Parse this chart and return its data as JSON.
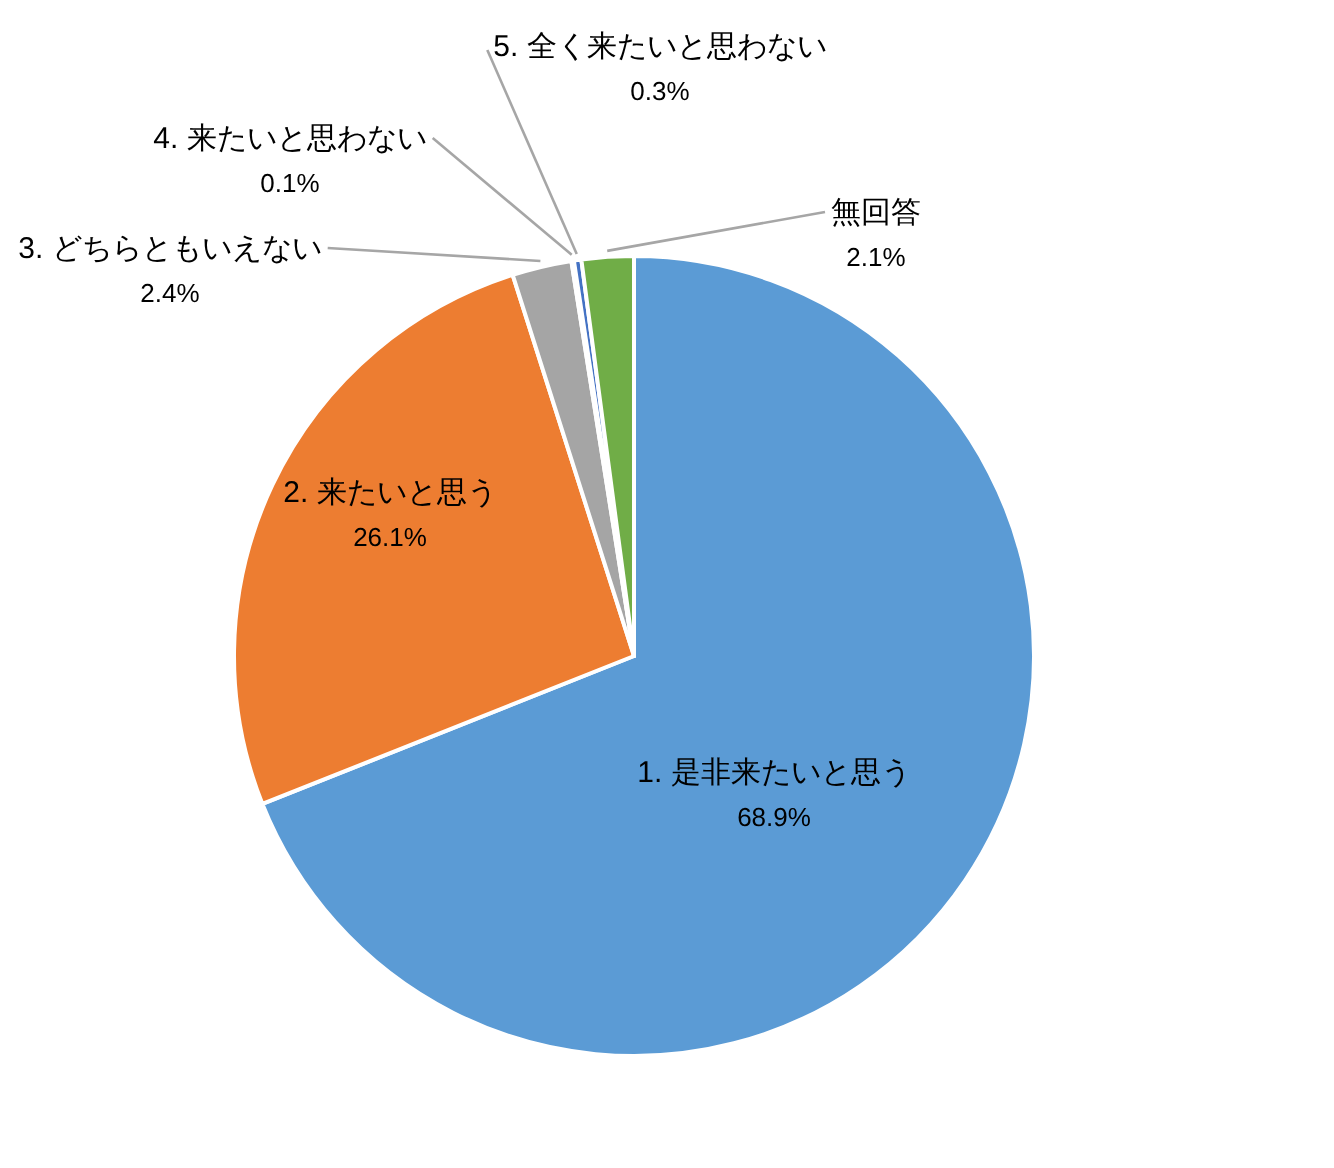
{
  "chart_data": {
    "type": "pie",
    "categories": [
      "1. 是非来たいと思う",
      "2. 来たいと思う",
      "3. どちらともいえない",
      "4. 来たいと思わない",
      "5. 全く来たいと思わない",
      "無回答"
    ],
    "values": [
      68.9,
      26.1,
      2.4,
      0.1,
      0.3,
      2.1
    ],
    "colors": [
      "#5b9bd5",
      "#ed7d31",
      "#a5a5a5",
      "#ffc000",
      "#4472c4",
      "#70ad47"
    ],
    "value_labels": [
      "68.9%",
      "26.1%",
      "2.4%",
      "0.1%",
      "0.3%",
      "2.1%"
    ],
    "legend": false
  }
}
